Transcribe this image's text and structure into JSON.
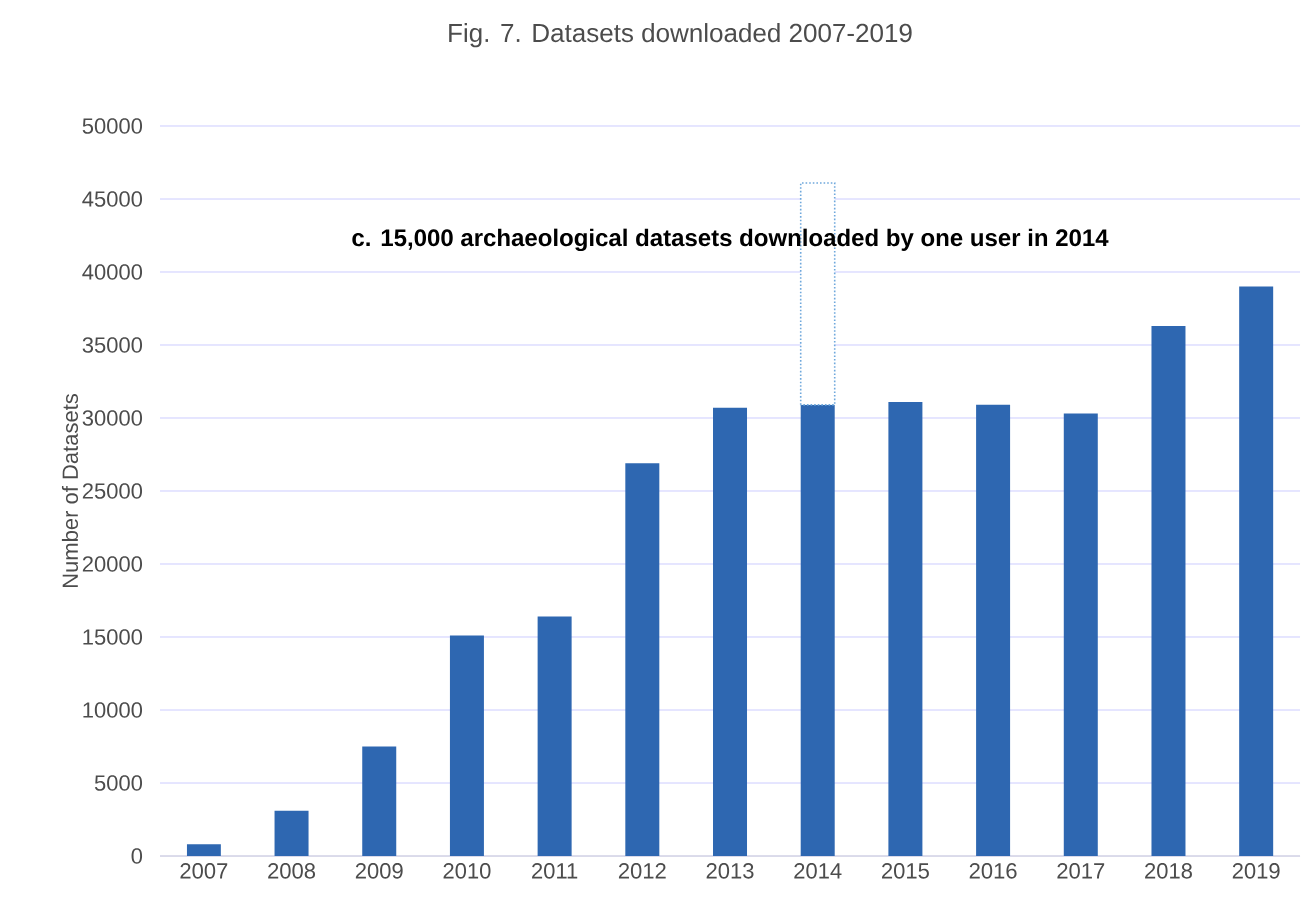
{
  "chart_data": {
    "type": "bar",
    "title": "Fig. 7. Datasets downloaded 2007-2019",
    "ylabel": "Number of Datasets",
    "categories": [
      "2007",
      "2008",
      "2009",
      "2010",
      "2011",
      "2012",
      "2013",
      "2014",
      "2015",
      "2016",
      "2017",
      "2018",
      "2019"
    ],
    "stacked": true,
    "series": [
      {
        "color": "#2e67b1",
        "values": [
          800,
          3100,
          7500,
          15100,
          16400,
          26900,
          30700,
          30900,
          31100,
          30900,
          30300,
          36300,
          39000
        ]
      },
      {
        "color": "#6fa8dc",
        "line_style": "dotted",
        "values": [
          null,
          null,
          null,
          null,
          null,
          null,
          null,
          15200,
          null,
          null,
          null,
          null,
          null
        ]
      }
    ],
    "annotations": [
      "c. 15,000 archaeological datasets downloaded by one user in 2014"
    ],
    "ylim": [
      0,
      50000
    ],
    "yticks": [
      0,
      5000,
      10000,
      15000,
      20000,
      25000,
      30000,
      35000,
      40000,
      45000,
      50000
    ],
    "grid": "y"
  }
}
